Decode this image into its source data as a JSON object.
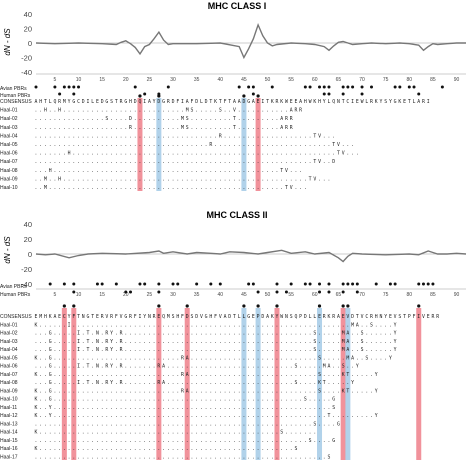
{
  "colors": {
    "line": "#777777",
    "zero": "#bbbbbb",
    "text": "#222222",
    "red_band": "#ef7f8a",
    "blue_band": "#a9cde8",
    "dot": "#111111"
  },
  "chart_data": [
    {
      "type": "line",
      "title": "MHC CLASS I",
      "ylabel": "dN - dS",
      "ylim": [
        -40,
        40
      ],
      "yticks": [
        "40",
        "20",
        "0",
        "-20",
        "-40"
      ],
      "xlim": [
        1,
        92
      ],
      "xticks": [
        "5",
        "10",
        "15",
        "20",
        "25",
        "30",
        "35",
        "40",
        "45",
        "50",
        "55",
        "60",
        "65",
        "70",
        "75",
        "80",
        "85",
        "90"
      ],
      "x": [
        1,
        5,
        10,
        15,
        18,
        19,
        20,
        21,
        22,
        23,
        24,
        25,
        26,
        27,
        28,
        29,
        30,
        35,
        40,
        44,
        45,
        46,
        47,
        48,
        49,
        50,
        51,
        52,
        55,
        58,
        60,
        62,
        63,
        64,
        65,
        66,
        67,
        68,
        70,
        72,
        75,
        78,
        80,
        82,
        83,
        84,
        85,
        86,
        88,
        90,
        92
      ],
      "y": [
        0,
        -1,
        0,
        -1,
        -2,
        1,
        3,
        -1,
        -6,
        -15,
        -5,
        -2,
        6,
        15,
        4,
        -2,
        -1,
        -1,
        0,
        -5,
        -20,
        -8,
        6,
        25,
        10,
        0,
        -4,
        -2,
        0,
        -1,
        -2,
        -5,
        -10,
        -4,
        1,
        2,
        0,
        -2,
        -1,
        0,
        -1,
        0,
        -1,
        -3,
        -10,
        -5,
        -1,
        -2,
        -1,
        0,
        0
      ],
      "avian_pbr_rows": [
        [
          1,
          5,
          7,
          8,
          9,
          10,
          22,
          29,
          44,
          46,
          47,
          51,
          58,
          59,
          61,
          62,
          63,
          66,
          67,
          68,
          70,
          72,
          77,
          78,
          80,
          81,
          87
        ],
        [
          6,
          9,
          24,
          27,
          47,
          62,
          63,
          66,
          70,
          82
        ]
      ],
      "pbr_labels": [
        "Avian PBRs",
        "Human PBRs"
      ],
      "alignment": {
        "consensus_label": "CONSENSUS",
        "consensus": "AHTLQRMYGCDILEDGSTRGHDQIAYDGRDFIAFDLDTKTFTAADGAEITKRKWEEAHWKHYLQNTCIEWLRKYSYGKETLARI",
        "rows": [
          {
            "name": "Haal-01",
            "seq": "..H..H..........................MS.....S..V...........ARR"
          },
          {
            "name": "Haal-02",
            "seq": "...............S....D..........MS.........T.........ARR"
          },
          {
            "name": "Haal-03",
            "seq": "....................R..........MS.........T.........ARR"
          },
          {
            "name": "Haal-04",
            "seq": ".......................................R...................TV..."
          },
          {
            "name": "Haal-05",
            "seq": ".....................................R.........................TV..."
          },
          {
            "name": "Haal-06",
            "seq": ".......H........................................................TV..."
          },
          {
            "name": "Haal-07",
            "seq": "...........................................................TV..D"
          },
          {
            "name": "Haal-08",
            "seq": "...H................................................TV..."
          },
          {
            "name": "Haal-09",
            "seq": "..M..H....................................................TV..."
          },
          {
            "name": "Haal-10",
            "seq": "..M..................................................TV..."
          }
        ],
        "red_columns": [
          23,
          48
        ],
        "blue_columns": [
          27,
          45
        ]
      }
    },
    {
      "type": "line",
      "title": "MHC CLASS II",
      "ylabel": "dN - dS",
      "ylim": [
        -40,
        40
      ],
      "yticks": [
        "40",
        "20",
        "0",
        "-20",
        "-40"
      ],
      "xlim": [
        1,
        92
      ],
      "xticks": [
        "5",
        "10",
        "15",
        "20",
        "25",
        "30",
        "35",
        "40",
        "45",
        "50",
        "55",
        "60",
        "65",
        "70",
        "75",
        "80",
        "85",
        "90"
      ],
      "x": [
        1,
        3,
        5,
        8,
        10,
        12,
        15,
        20,
        25,
        27,
        28,
        30,
        33,
        35,
        38,
        40,
        42,
        45,
        48,
        50,
        53,
        55,
        58,
        60,
        63,
        65,
        66,
        67,
        68,
        70,
        75,
        80,
        82,
        84,
        85,
        86,
        88,
        90,
        92
      ],
      "y": [
        0,
        -1,
        0,
        -5,
        -2,
        0,
        1,
        0,
        2,
        4,
        1,
        3,
        0,
        2,
        1,
        0,
        3,
        2,
        0,
        2,
        5,
        1,
        3,
        0,
        2,
        -5,
        -10,
        -3,
        1,
        0,
        -1,
        0,
        -1,
        4,
        2,
        0,
        0,
        1,
        0
      ],
      "avian_pbr_rows": [
        [
          4,
          7,
          9,
          14,
          15,
          18,
          23,
          24,
          27,
          30,
          31,
          35,
          38,
          40,
          46,
          47,
          52,
          55,
          58,
          59,
          61,
          63,
          66,
          67,
          68,
          69,
          73,
          76,
          77,
          82,
          83,
          84,
          85
        ],
        [
          9,
          20,
          21,
          27,
          48,
          52,
          54,
          61,
          63,
          66,
          69
        ]
      ],
      "pbr_labels": [
        "Avian PBRs",
        "Human PBRs"
      ],
      "alignment": {
        "consensus_label": "CONSENSUS",
        "consensus": "EMHKAECYFTNGTERVRFVGRFIYNREQMSHFDSDVGHFVADTLLGEPDAKYWNSQPDLLERKRAEVDTVCRHNYEVSTPFIVERR",
        "rows": [
          {
            "name": "Haal-01",
            "seq": "K......I...........................................................MA..S....Y"
          },
          {
            "name": "Haal-02",
            "seq": "...G.....I.T.N.RY.R........................................S.....MA..S......Y"
          },
          {
            "name": "Haal-03",
            "seq": "...G.....I.T.N.RY.R........................................S.....MA..S......Y"
          },
          {
            "name": "Haal-04",
            "seq": "...G.....I.T.N.RY.R........................................S.....MA..S......Y"
          },
          {
            "name": "Haal-05",
            "seq": "K..G...........................RA...........................S.....MA..S....Y"
          },
          {
            "name": "Haal-06",
            "seq": "...G.....I.T.N.RY.R.......RA...........................S.....MA..S..Y"
          },
          {
            "name": "Haal-07",
            "seq": "K..G...........................RA...........................S....KT.....Y"
          },
          {
            "name": "Haal-08",
            "seq": "...G.....I.T.N.RY.R.......RA...........................S....KT.....Y"
          },
          {
            "name": "Haal-09",
            "seq": "K..G...........................RA...........................S....KT.....Y"
          },
          {
            "name": "Haal-10",
            "seq": "K..G.....................................................S.....G"
          },
          {
            "name": "Haal-11",
            "seq": "K..Y...........................................................S"
          },
          {
            "name": "Haal-12",
            "seq": "K..Y..........................................................T.........Y"
          },
          {
            "name": "Haal-13",
            "seq": "...........................................................S....G"
          },
          {
            "name": "Haal-14",
            "seq": "K...................................................S......."
          },
          {
            "name": "Haal-15",
            "seq": "..........................................................S....G"
          },
          {
            "name": "Haal-16",
            "seq": "K......................................................S"
          },
          {
            "name": "Haal-17",
            "seq": "..............................................................S"
          }
        ],
        "red_columns": [
          7,
          9,
          27,
          33,
          52,
          66,
          82
        ],
        "blue_columns": [
          45,
          48,
          61,
          67
        ]
      }
    }
  ]
}
